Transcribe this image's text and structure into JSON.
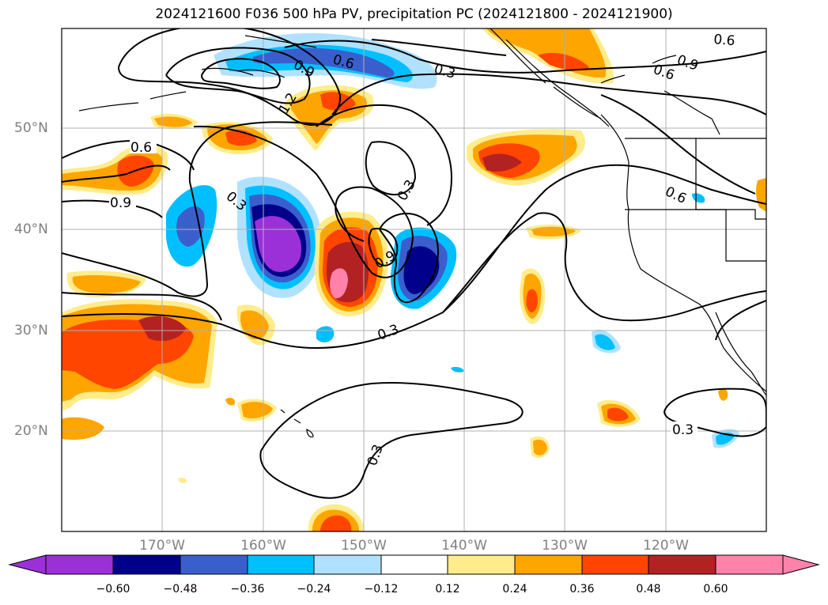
{
  "title": "2024121600 F036 500 hPa PV, precipitation PC (2024121800 - 2024121900)",
  "lat_labels": [
    "50°N",
    "40°N",
    "30°N",
    "20°N"
  ],
  "lon_labels": [
    "170°W",
    "160°W",
    "150°W",
    "140°W",
    "130°W",
    "120°W"
  ],
  "contour_labels": [
    "0.6",
    "0.9",
    "0.3",
    "0.9",
    "1.2",
    "0.3",
    "0.6",
    "0.6",
    "0.9",
    "0.6",
    "0.3",
    "0.9",
    "0.3",
    "0.3",
    "0.3",
    "0.6"
  ],
  "colorbar": {
    "tick_labels": [
      "−0.60",
      "−0.48",
      "−0.36",
      "−0.24",
      "−0.12",
      "0.12",
      "0.24",
      "0.36",
      "0.48",
      "0.60"
    ],
    "colors": [
      "#9b30d9",
      "#00008b",
      "#3a5fcd",
      "#00bfff",
      "#b0e2ff",
      "#ffffff",
      "#ffec8b",
      "#ffa500",
      "#ff4500",
      "#b22222",
      "#ff82ab"
    ]
  },
  "extent": {
    "lon_min": -180,
    "lon_max": -110,
    "lat_min": 10,
    "lat_max": 60
  }
}
